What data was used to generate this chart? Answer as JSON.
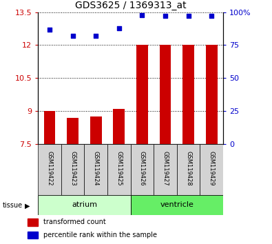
{
  "title": "GDS3625 / 1369313_at",
  "samples": [
    "GSM119422",
    "GSM119423",
    "GSM119424",
    "GSM119425",
    "GSM119426",
    "GSM119427",
    "GSM119428",
    "GSM119429"
  ],
  "red_values": [
    9.0,
    8.7,
    8.75,
    9.1,
    12.0,
    12.0,
    12.0,
    12.0
  ],
  "blue_values": [
    87,
    82,
    82,
    88,
    98,
    97,
    97,
    97
  ],
  "ylim_left": [
    7.5,
    13.5
  ],
  "yticks_left": [
    7.5,
    9.0,
    10.5,
    12.0,
    13.5
  ],
  "ytick_left_labels": [
    "7.5",
    "9",
    "10.5",
    "12",
    "13.5"
  ],
  "yticks_right": [
    0,
    25,
    50,
    75,
    100
  ],
  "ytick_right_labels": [
    "0",
    "25",
    "50",
    "75",
    "100%"
  ],
  "groups": [
    {
      "label": "atrium",
      "start": 0,
      "end": 3,
      "color": "#ccffcc"
    },
    {
      "label": "ventricle",
      "start": 4,
      "end": 7,
      "color": "#66ee66"
    }
  ],
  "bar_color": "#cc0000",
  "dot_color": "#0000cc",
  "bar_bottom": 7.5,
  "tick_label_color_left": "#cc0000",
  "tick_label_color_right": "#0000cc",
  "legend_items": [
    {
      "color": "#cc0000",
      "label": "transformed count"
    },
    {
      "color": "#0000cc",
      "label": "percentile rank within the sample"
    }
  ],
  "tissue_label": "tissue"
}
